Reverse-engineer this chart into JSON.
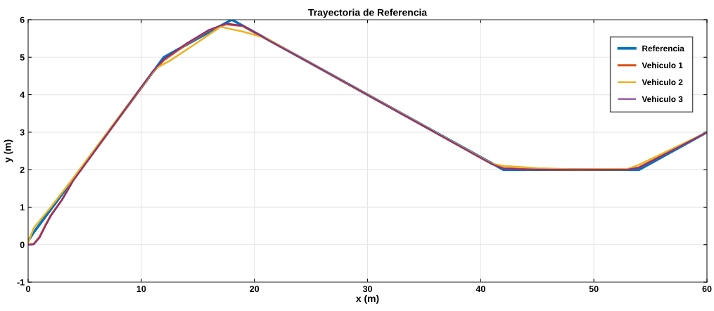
{
  "chart_data": {
    "type": "line",
    "title": "Trayectoria de Referencia",
    "xlabel": "x (m)",
    "ylabel": "y (m)",
    "xlim": [
      0,
      60
    ],
    "ylim": [
      -1,
      6
    ],
    "xticks": [
      0,
      10,
      20,
      30,
      40,
      50,
      60
    ],
    "yticks": [
      -1,
      0,
      1,
      2,
      3,
      4,
      5,
      6
    ],
    "grid": true,
    "legend": "top right",
    "marker": "none",
    "line_style": "solid",
    "series": [
      {
        "name": "Referencia",
        "color": "#0072bd",
        "x": [
          0,
          0.5,
          12,
          18,
          42,
          54,
          60
        ],
        "values": [
          0.1,
          0.33,
          5,
          6,
          2,
          2,
          3
        ]
      },
      {
        "name": "Vehiculo 1",
        "color": "#d95319",
        "x": [
          0,
          0.5,
          1,
          1.5,
          2,
          3,
          4,
          11,
          12,
          14,
          16,
          17.5,
          19,
          20.5,
          24,
          41,
          42,
          44,
          48,
          53,
          54,
          60
        ],
        "values": [
          0,
          0.02,
          0.2,
          0.5,
          0.78,
          1.2,
          1.72,
          4.6,
          4.92,
          5.35,
          5.72,
          5.88,
          5.83,
          5.58,
          5,
          2.15,
          2.04,
          2.01,
          2,
          2.01,
          2.06,
          3
        ]
      },
      {
        "name": "Vehiculo 2",
        "color": "#edb120",
        "x": [
          0,
          0.5,
          2,
          4,
          11.2,
          12.5,
          15,
          17,
          19,
          21.1,
          24,
          41,
          42,
          45,
          48,
          53,
          54,
          60
        ],
        "values": [
          0.05,
          0.45,
          1.0,
          1.78,
          4.69,
          4.9,
          5.4,
          5.81,
          5.68,
          5.5,
          5,
          2.16,
          2.1,
          2.04,
          2.01,
          2.02,
          2.13,
          3
        ]
      },
      {
        "name": "Vehiculo 3",
        "color": "#7e2f8e",
        "x": [
          0,
          0.5,
          1,
          1.5,
          2,
          3,
          4,
          11,
          12,
          14,
          16,
          17.5,
          19,
          20.5,
          24,
          41,
          42,
          44,
          48,
          53,
          54,
          60
        ],
        "values": [
          0,
          0.01,
          0.18,
          0.48,
          0.76,
          1.2,
          1.72,
          4.62,
          4.95,
          5.37,
          5.73,
          5.9,
          5.84,
          5.58,
          5,
          2.15,
          2.03,
          2.01,
          2,
          2.01,
          2.05,
          3
        ]
      }
    ]
  }
}
